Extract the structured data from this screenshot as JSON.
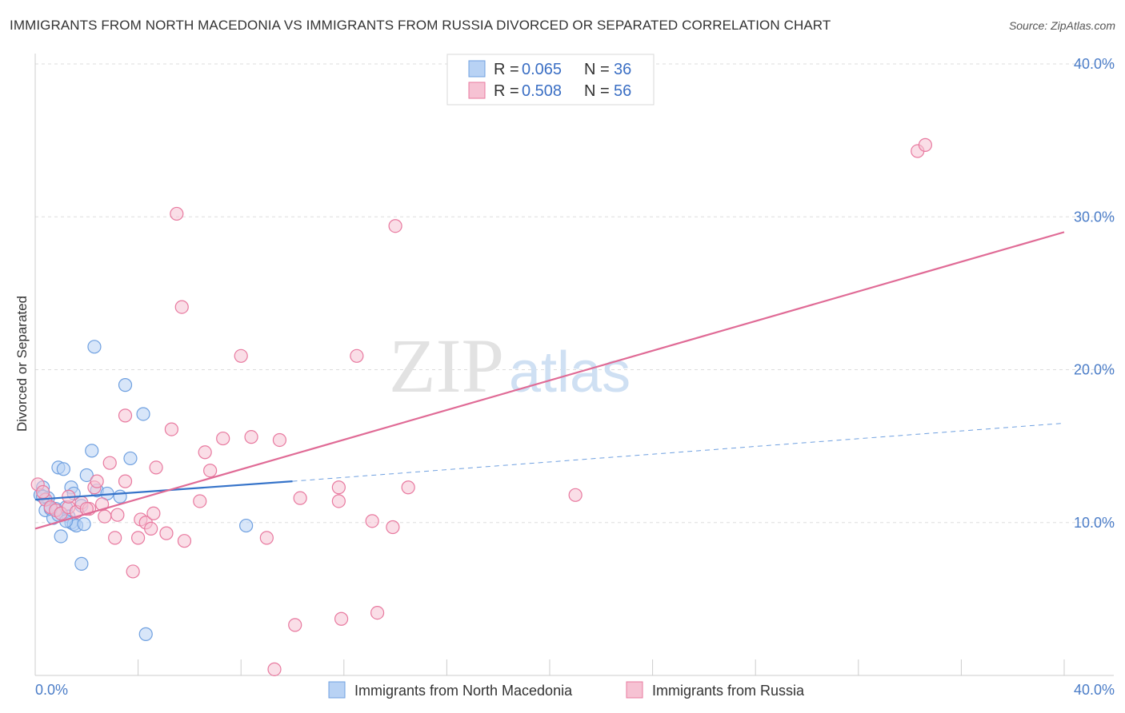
{
  "title": "IMMIGRANTS FROM NORTH MACEDONIA VS IMMIGRANTS FROM RUSSIA DIVORCED OR SEPARATED CORRELATION CHART",
  "source": "Source: ZipAtlas.com",
  "watermark": {
    "zip": "ZIP",
    "atlas": "atlas"
  },
  "colors": {
    "macedonia": "#6fa0e0",
    "macedonia_fill": "#b8d2f4",
    "russia": "#e8799f",
    "russia_fill": "#f6c2d3",
    "axis_text": "#4a7cc7",
    "grid": "#dddddd"
  },
  "legend": {
    "macedonia": {
      "r_label": "R = ",
      "r_value": "0.065",
      "n_label": "N = ",
      "n_value": "36"
    },
    "russia": {
      "r_label": "R = ",
      "r_value": "0.508",
      "n_label": "N = ",
      "n_value": "56"
    }
  },
  "chart_data": {
    "type": "scatter",
    "xlabel": "",
    "ylabel": "Divorced or Separated",
    "xlim": [
      0,
      40
    ],
    "ylim": [
      0,
      40
    ],
    "x_ticks": [
      "0.0%",
      "40.0%"
    ],
    "y_ticks": [
      {
        "value": 10,
        "label": "10.0%"
      },
      {
        "value": 20,
        "label": "20.0%"
      },
      {
        "value": 30,
        "label": "30.0%"
      },
      {
        "value": 40,
        "label": "40.0%"
      }
    ],
    "series": [
      {
        "name": "Immigrants from North Macedonia",
        "color": "#6fa0e0",
        "points": [
          [
            0.3,
            12.3
          ],
          [
            0.2,
            11.8
          ],
          [
            0.5,
            11.6
          ],
          [
            0.6,
            11.0
          ],
          [
            0.8,
            10.9
          ],
          [
            0.4,
            10.8
          ],
          [
            0.7,
            10.3
          ],
          [
            0.9,
            10.5
          ],
          [
            1.0,
            10.6
          ],
          [
            1.2,
            11.0
          ],
          [
            1.3,
            10.4
          ],
          [
            1.4,
            10.0
          ],
          [
            1.5,
            9.9
          ],
          [
            1.6,
            9.8
          ],
          [
            1.9,
            9.9
          ],
          [
            0.9,
            13.6
          ],
          [
            1.1,
            13.5
          ],
          [
            1.4,
            12.3
          ],
          [
            1.5,
            11.9
          ],
          [
            1.8,
            11.1
          ],
          [
            2.2,
            14.7
          ],
          [
            2.0,
            13.1
          ],
          [
            2.4,
            12.1
          ],
          [
            2.8,
            11.9
          ],
          [
            3.3,
            11.7
          ],
          [
            3.7,
            14.2
          ],
          [
            3.5,
            19.0
          ],
          [
            4.2,
            17.1
          ],
          [
            2.3,
            21.5
          ],
          [
            1.0,
            9.1
          ],
          [
            1.8,
            7.3
          ],
          [
            4.3,
            2.7
          ],
          [
            8.2,
            9.8
          ],
          [
            0.3,
            11.7
          ],
          [
            0.6,
            10.9
          ],
          [
            1.2,
            10.1
          ]
        ]
      },
      {
        "name": "Immigrants from Russia",
        "color": "#e8799f",
        "points": [
          [
            0.1,
            12.5
          ],
          [
            0.4,
            11.5
          ],
          [
            0.6,
            11.0
          ],
          [
            0.8,
            10.8
          ],
          [
            1.0,
            10.6
          ],
          [
            1.3,
            11.0
          ],
          [
            1.6,
            10.7
          ],
          [
            1.8,
            11.3
          ],
          [
            2.1,
            10.9
          ],
          [
            2.3,
            12.3
          ],
          [
            2.4,
            12.7
          ],
          [
            2.6,
            11.2
          ],
          [
            2.7,
            10.4
          ],
          [
            2.9,
            13.9
          ],
          [
            3.1,
            9.0
          ],
          [
            3.2,
            10.5
          ],
          [
            3.5,
            12.7
          ],
          [
            3.5,
            17.0
          ],
          [
            3.8,
            6.8
          ],
          [
            4.0,
            9.0
          ],
          [
            4.1,
            10.2
          ],
          [
            4.3,
            10.0
          ],
          [
            4.5,
            9.6
          ],
          [
            4.6,
            10.6
          ],
          [
            4.7,
            13.6
          ],
          [
            5.1,
            9.3
          ],
          [
            5.3,
            16.1
          ],
          [
            5.5,
            30.2
          ],
          [
            5.7,
            24.1
          ],
          [
            5.8,
            8.8
          ],
          [
            6.4,
            11.4
          ],
          [
            6.6,
            14.6
          ],
          [
            6.8,
            13.4
          ],
          [
            7.3,
            15.5
          ],
          [
            8.0,
            20.9
          ],
          [
            8.4,
            15.6
          ],
          [
            9.0,
            9.0
          ],
          [
            9.3,
            0.4
          ],
          [
            9.5,
            15.4
          ],
          [
            10.1,
            3.3
          ],
          [
            10.3,
            11.6
          ],
          [
            11.8,
            12.3
          ],
          [
            11.8,
            11.4
          ],
          [
            11.9,
            3.7
          ],
          [
            12.5,
            20.9
          ],
          [
            13.1,
            10.1
          ],
          [
            13.3,
            4.1
          ],
          [
            13.9,
            9.7
          ],
          [
            14.0,
            29.4
          ],
          [
            14.5,
            12.3
          ],
          [
            21.0,
            11.8
          ],
          [
            34.3,
            34.3
          ],
          [
            34.6,
            34.7
          ],
          [
            1.3,
            11.7
          ],
          [
            2.0,
            10.9
          ],
          [
            0.3,
            12.0
          ]
        ]
      }
    ],
    "trendlines": [
      {
        "series": "Immigrants from North Macedonia",
        "x": [
          0,
          10
        ],
        "y": [
          11.5,
          12.7
        ],
        "extended_x": [
          10,
          40
        ],
        "extended_y": [
          12.7,
          16.5
        ]
      },
      {
        "series": "Immigrants from Russia",
        "x": [
          0,
          40
        ],
        "y": [
          9.6,
          29.0
        ]
      }
    ],
    "grid": true,
    "legend_position": "top-center"
  }
}
